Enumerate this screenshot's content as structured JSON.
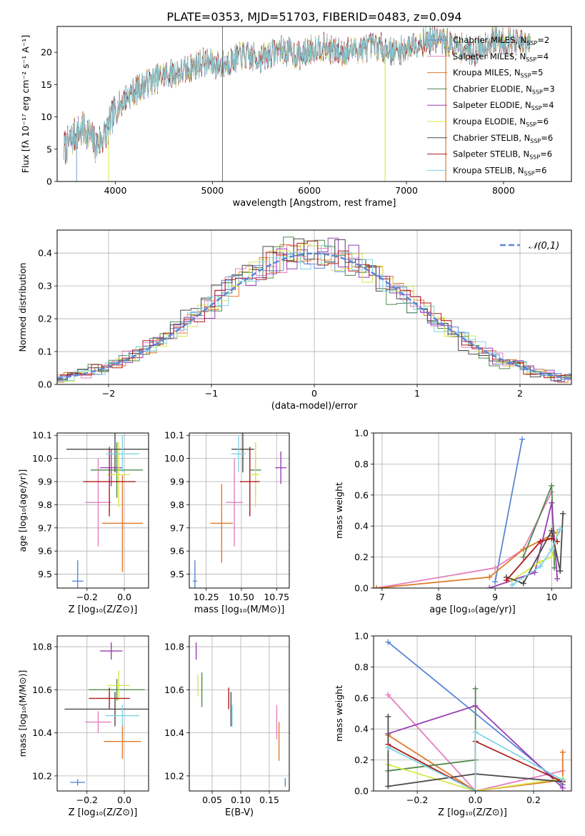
{
  "figure_title": "PLATE=0353, MJD=51703, FIBERID=0483, z=0.094",
  "models": [
    {
      "name": "Chabrier MILES",
      "nssp": "2",
      "color": "#5b87d6"
    },
    {
      "name": "Salpeter MILES",
      "nssp": "4",
      "color": "#e47fbe"
    },
    {
      "name": "Kroupa MILES",
      "nssp": "5",
      "color": "#e07a2b"
    },
    {
      "name": "Chabrier ELODIE",
      "nssp": "3",
      "color": "#4f8a4f"
    },
    {
      "name": "Salpeter ELODIE",
      "nssp": "4",
      "color": "#9a3fb4"
    },
    {
      "name": "Kroupa ELODIE",
      "nssp": "6",
      "color": "#d9e84a"
    },
    {
      "name": "Chabrier STELIB",
      "nssp": "6",
      "color": "#4a4a4a"
    },
    {
      "name": "Salpeter STELIB",
      "nssp": "6",
      "color": "#b01a1a"
    },
    {
      "name": "Kroupa STELIB",
      "nssp": "6",
      "color": "#7fd3e3"
    }
  ],
  "chart_data": [
    {
      "id": "spectrum",
      "type": "line",
      "xlabel": "wavelength [Angstrom, rest frame]",
      "ylabel": "Flux [fλ 10⁻¹⁷ erg cm⁻² s⁻¹ A⁻¹]",
      "xlim": [
        3400,
        8700
      ],
      "ylim": [
        0,
        24
      ],
      "xticks": [
        4000,
        5000,
        6000,
        7000,
        8000
      ],
      "yticks": [
        0,
        5,
        10,
        15,
        20
      ],
      "grid": false,
      "legend": "upper right",
      "profile": {
        "x": [
          3470,
          3600,
          3700,
          3800,
          3900,
          4000,
          4100,
          4300,
          4500,
          4700,
          4900,
          5100,
          5300,
          5500,
          5700,
          5900,
          6100,
          6300,
          6500,
          6700,
          6900,
          7100,
          7300,
          7500,
          7700,
          7900,
          8100,
          8280
        ],
        "y": [
          5.0,
          7.5,
          8.0,
          5.5,
          7.5,
          11.0,
          13.0,
          15.0,
          16.5,
          17.0,
          18.5,
          18.0,
          19.5,
          19.0,
          20.5,
          19.5,
          21.0,
          20.0,
          20.5,
          21.0,
          20.0,
          21.5,
          22.0,
          21.0,
          20.0,
          22.0,
          21.5,
          21.0
        ]
      }
    },
    {
      "id": "residual_histogram",
      "type": "histogram",
      "xlabel": "(data-model)/error",
      "ylabel": "Normed distribution",
      "xlim": [
        -2.5,
        2.5
      ],
      "ylim": [
        0,
        0.47
      ],
      "xticks": [
        -2,
        -1,
        0,
        1,
        2
      ],
      "yticks": [
        0.0,
        0.1,
        0.2,
        0.3,
        0.4
      ],
      "grid": true,
      "legend": "upper right",
      "gaussian_label": "𝒩(0,1)",
      "gaussian": {
        "mean": 0,
        "sigma": 1,
        "color": "#5b87d6"
      },
      "bin_width": 0.1
    },
    {
      "id": "age_vs_Z",
      "type": "errorbar",
      "xlabel": "Z [log₁₀(Z/Z⊙)]",
      "ylabel": "age  [log₁₀(age/yr)]",
      "xlim": [
        -0.36,
        0.13
      ],
      "ylim": [
        9.44,
        10.11
      ],
      "xticks": [
        -0.2,
        0.0
      ],
      "yticks": [
        9.5,
        9.6,
        9.7,
        9.8,
        9.9,
        10.0,
        10.1
      ],
      "grid": true,
      "points": [
        {
          "x": -0.25,
          "y": 9.47,
          "xerr": 0.03,
          "yerr": 0.09
        },
        {
          "x": -0.14,
          "y": 9.81,
          "xerr": 0.07,
          "yerr": 0.19
        },
        {
          "x": -0.01,
          "y": 9.72,
          "xerr": 0.11,
          "yerr": 0.21
        },
        {
          "x": -0.04,
          "y": 9.95,
          "xerr": 0.14,
          "yerr": 0.12
        },
        {
          "x": -0.07,
          "y": 9.96,
          "xerr": 0.06,
          "yerr": 0.08
        },
        {
          "x": -0.03,
          "y": 9.93,
          "xerr": 0.06,
          "yerr": 0.14
        },
        {
          "x": -0.05,
          "y": 10.04,
          "xerr": 0.26,
          "yerr": 0.1
        },
        {
          "x": -0.08,
          "y": 9.9,
          "xerr": 0.14,
          "yerr": 0.15
        },
        {
          "x": -0.01,
          "y": 10.02,
          "xerr": 0.09,
          "yerr": 0.08
        }
      ]
    },
    {
      "id": "age_vs_mass",
      "type": "errorbar",
      "xlabel": "mass [log₁₀(M/M⊙)]",
      "xlim": [
        10.13,
        10.84
      ],
      "ylim": [
        9.44,
        10.11
      ],
      "xticks": [
        10.25,
        10.5,
        10.75
      ],
      "yticks": [
        9.5,
        9.6,
        9.7,
        9.8,
        9.9,
        10.0,
        10.1
      ],
      "grid": true,
      "points": [
        {
          "x": 10.17,
          "y": 9.47,
          "xerr": 0.015,
          "yerr": 0.09
        },
        {
          "x": 10.45,
          "y": 9.81,
          "xerr": 0.06,
          "yerr": 0.19
        },
        {
          "x": 10.36,
          "y": 9.72,
          "xerr": 0.08,
          "yerr": 0.17
        },
        {
          "x": 10.6,
          "y": 9.95,
          "xerr": 0.04,
          "yerr": 0.12
        },
        {
          "x": 10.78,
          "y": 9.96,
          "xerr": 0.04,
          "yerr": 0.07
        },
        {
          "x": 10.6,
          "y": 9.93,
          "xerr": 0.03,
          "yerr": 0.14
        },
        {
          "x": 10.51,
          "y": 10.04,
          "xerr": 0.08,
          "yerr": 0.1
        },
        {
          "x": 10.56,
          "y": 9.9,
          "xerr": 0.07,
          "yerr": 0.15
        },
        {
          "x": 10.48,
          "y": 10.02,
          "xerr": 0.05,
          "yerr": 0.08
        }
      ]
    },
    {
      "id": "weight_vs_age",
      "type": "line",
      "xlabel": "age  [log₁₀(age/yr)]",
      "ylabel": "mass weight",
      "xlim": [
        6.85,
        10.35
      ],
      "ylim": [
        0,
        1
      ],
      "xticks": [
        7,
        8,
        9,
        10
      ],
      "yticks": [
        0.0,
        0.2,
        0.4,
        0.6,
        0.8,
        1.0
      ],
      "grid": true,
      "series": [
        {
          "x": [
            9.0,
            9.48
          ],
          "y": [
            0.04,
            0.96
          ]
        },
        {
          "x": [
            6.9,
            9.0,
            9.5,
            10.0
          ],
          "y": [
            0.0,
            0.13,
            0.25,
            0.62
          ]
        },
        {
          "x": [
            6.9,
            8.9,
            9.5,
            10.1
          ],
          "y": [
            0.0,
            0.07,
            0.25,
            0.36
          ]
        },
        {
          "x": [
            9.5,
            10.0,
            10.05
          ],
          "y": [
            0.2,
            0.66,
            0.13
          ]
        },
        {
          "x": [
            8.9,
            9.7,
            10.0,
            10.1
          ],
          "y": [
            0.0,
            0.1,
            0.55,
            0.06
          ]
        },
        {
          "x": [
            9.3,
            9.8,
            10.0,
            10.1
          ],
          "y": [
            0.05,
            0.17,
            0.2,
            0.35
          ]
        },
        {
          "x": [
            9.2,
            9.5,
            10.0,
            10.15,
            10.2
          ],
          "y": [
            0.07,
            0.03,
            0.37,
            0.11,
            0.48
          ]
        },
        {
          "x": [
            9.2,
            9.8,
            10.0,
            10.1
          ],
          "y": [
            0.05,
            0.3,
            0.32,
            0.3
          ]
        },
        {
          "x": [
            9.3,
            9.8,
            10.0,
            10.15
          ],
          "y": [
            0.02,
            0.14,
            0.25,
            0.38
          ]
        }
      ]
    },
    {
      "id": "mass_vs_Z",
      "type": "errorbar",
      "xlabel": "Z [log₁₀(Z/Z⊙)]",
      "ylabel": "mass [log₁₀(M/M⊙)]",
      "xlim": [
        -0.36,
        0.13
      ],
      "ylim": [
        10.13,
        10.85
      ],
      "xticks": [
        -0.2,
        0.0
      ],
      "yticks": [
        10.2,
        10.4,
        10.6,
        10.8
      ],
      "grid": true,
      "points": [
        {
          "x": -0.25,
          "y": 10.17,
          "xerr": 0.04,
          "yerr": 0.015
        },
        {
          "x": -0.14,
          "y": 10.45,
          "xerr": 0.07,
          "yerr": 0.05
        },
        {
          "x": -0.01,
          "y": 10.36,
          "xerr": 0.1,
          "yerr": 0.08
        },
        {
          "x": -0.04,
          "y": 10.6,
          "xerr": 0.15,
          "yerr": 0.05
        },
        {
          "x": -0.07,
          "y": 10.78,
          "xerr": 0.06,
          "yerr": 0.04
        },
        {
          "x": -0.03,
          "y": 10.62,
          "xerr": 0.06,
          "yerr": 0.07
        },
        {
          "x": -0.05,
          "y": 10.51,
          "xerr": 0.27,
          "yerr": 0.08
        },
        {
          "x": -0.08,
          "y": 10.56,
          "xerr": 0.11,
          "yerr": 0.05
        },
        {
          "x": -0.01,
          "y": 10.48,
          "xerr": 0.09,
          "yerr": 0.05
        }
      ]
    },
    {
      "id": "mass_vs_EBV",
      "type": "errorbar",
      "xlabel": "E(B-V)",
      "xlim": [
        0.01,
        0.185
      ],
      "ylim": [
        10.13,
        10.85
      ],
      "xticks": [
        0.05,
        0.1,
        0.15
      ],
      "yticks": [
        10.2,
        10.4,
        10.6,
        10.8
      ],
      "grid": true,
      "points": [
        {
          "x": 0.178,
          "y": 10.17,
          "xerr": 0,
          "yerr": 0.02
        },
        {
          "x": 0.163,
          "y": 10.45,
          "xerr": 0,
          "yerr": 0.08
        },
        {
          "x": 0.167,
          "y": 10.36,
          "xerr": 0,
          "yerr": 0.09
        },
        {
          "x": 0.032,
          "y": 10.6,
          "xerr": 0,
          "yerr": 0.08
        },
        {
          "x": 0.022,
          "y": 10.78,
          "xerr": 0,
          "yerr": 0.04
        },
        {
          "x": 0.025,
          "y": 10.62,
          "xerr": 0,
          "yerr": 0.05
        },
        {
          "x": 0.083,
          "y": 10.51,
          "xerr": 0,
          "yerr": 0.08
        },
        {
          "x": 0.079,
          "y": 10.56,
          "xerr": 0,
          "yerr": 0.05
        },
        {
          "x": 0.085,
          "y": 10.48,
          "xerr": 0,
          "yerr": 0.05
        }
      ]
    },
    {
      "id": "weight_vs_Z",
      "type": "line",
      "xlabel": "Z [log₁₀(Z/Z⊙)]",
      "ylabel": "mass weight",
      "xlim": [
        -0.35,
        0.33
      ],
      "ylim": [
        0,
        1
      ],
      "xticks": [
        -0.2,
        0.0,
        0.2
      ],
      "yticks": [
        0.0,
        0.2,
        0.4,
        0.6,
        0.8,
        1.0
      ],
      "grid": true,
      "series": [
        {
          "x": [
            -0.3,
            0.3
          ],
          "y": [
            0.96,
            0.04
          ]
        },
        {
          "x": [
            -0.3,
            0.0,
            0.3
          ],
          "y": [
            0.62,
            0.0,
            0.13
          ]
        },
        {
          "x": [
            -0.3,
            0.0,
            0.3,
            0.3
          ],
          "y": [
            0.36,
            0.0,
            0.07,
            0.25
          ]
        },
        {
          "x": [
            -0.3,
            0.0,
            0.0
          ],
          "y": [
            0.13,
            0.2,
            0.66
          ]
        },
        {
          "x": [
            -0.3,
            0.0,
            0.3
          ],
          "y": [
            0.37,
            0.55,
            0.02
          ]
        },
        {
          "x": [
            -0.3,
            0.0,
            0.3
          ],
          "y": [
            0.17,
            0.0,
            0.08
          ]
        },
        {
          "x": [
            -0.3,
            -0.3,
            0.0,
            0.3
          ],
          "y": [
            0.48,
            0.03,
            0.11,
            0.06
          ]
        },
        {
          "x": [
            -0.3,
            0.0,
            0.0,
            0.3
          ],
          "y": [
            0.3,
            0.0,
            0.32,
            0.06
          ]
        },
        {
          "x": [
            -0.3,
            0.0,
            0.0,
            0.3
          ],
          "y": [
            0.28,
            0.0,
            0.38,
            0.07
          ]
        }
      ]
    }
  ]
}
